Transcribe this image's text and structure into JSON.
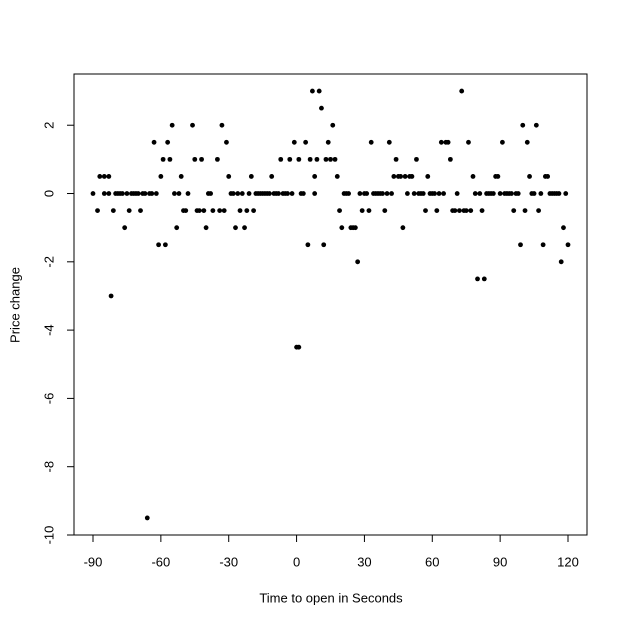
{
  "chart_data": {
    "type": "scatter",
    "x_label": "Time to open in Seconds",
    "y_label": "Price change",
    "color": "#000000",
    "xlim": [
      -98.4,
      128.4
    ],
    "ylim": [
      -10,
      3.5
    ],
    "xticks": [
      -90,
      -60,
      -30,
      0,
      30,
      60,
      90,
      120
    ],
    "yticks": [
      -10,
      -8,
      -6,
      -4,
      -2,
      0,
      2
    ],
    "x": [
      -90,
      -88,
      -87,
      -85,
      -85,
      -83,
      -83,
      -82,
      -81,
      -80,
      -79,
      -78,
      -77,
      -76,
      -75,
      -74,
      -73,
      -72,
      -71,
      -70,
      -69,
      -68,
      -67,
      -66,
      -65,
      -64,
      -63,
      -62,
      -61,
      -60,
      -59,
      -58,
      -57,
      -56,
      -55,
      -54,
      -53,
      -52,
      -51,
      -50,
      -49,
      -48,
      -46,
      -45,
      -44,
      -43,
      -42,
      -41,
      -40,
      -39,
      -38,
      -37,
      -35,
      -34,
      -33,
      -32,
      -31,
      -30,
      -29,
      -28,
      -27,
      -26,
      -25,
      -24,
      -23,
      -22,
      -21,
      -20,
      -19,
      -18,
      -17,
      -16,
      -15,
      -14,
      -13,
      -12,
      -11,
      -10,
      -9,
      -8,
      -7,
      -6,
      -5,
      -4,
      -3,
      -2,
      -1,
      0,
      1,
      1,
      2,
      3,
      4,
      5,
      6,
      7,
      8,
      8,
      9,
      10,
      11,
      12,
      13,
      14,
      15,
      16,
      17,
      18,
      19,
      20,
      21,
      22,
      23,
      24,
      25,
      26,
      27,
      28,
      29,
      30,
      31,
      32,
      33,
      34,
      35,
      36,
      37,
      38,
      39,
      40,
      41,
      42,
      43,
      44,
      45,
      46,
      47,
      48,
      49,
      50,
      51,
      52,
      53,
      54,
      55,
      56,
      57,
      58,
      59,
      60,
      61,
      62,
      63,
      64,
      65,
      66,
      67,
      68,
      69,
      70,
      71,
      72,
      73,
      74,
      75,
      76,
      77,
      78,
      79,
      80,
      81,
      82,
      83,
      84,
      85,
      86,
      87,
      88,
      89,
      90,
      91,
      92,
      93,
      94,
      95,
      96,
      97,
      98,
      99,
      100,
      101,
      102,
      103,
      104,
      105,
      106,
      107,
      108,
      109,
      110,
      111,
      112,
      113,
      114,
      115,
      116,
      117,
      118,
      119,
      120
    ],
    "values": [
      0,
      -0.5,
      0.5,
      0.5,
      0,
      0,
      0.5,
      -3,
      -0.5,
      0,
      0,
      0,
      0,
      -1,
      0,
      -0.5,
      0,
      0,
      0,
      0,
      -0.5,
      0,
      0,
      -9.5,
      0,
      0,
      1.5,
      0,
      -1.5,
      0.5,
      1,
      -1.5,
      1.5,
      1,
      2,
      0,
      -1,
      0,
      0.5,
      -0.5,
      -0.5,
      0,
      2,
      1,
      -0.5,
      -0.5,
      1,
      -0.5,
      -1,
      0,
      0,
      -0.5,
      1,
      -0.5,
      2,
      -0.5,
      1.5,
      0.5,
      0,
      0,
      -1,
      0,
      -0.5,
      0,
      -1,
      -0.5,
      0,
      0.5,
      -0.5,
      0,
      0,
      0,
      0,
      0,
      0,
      0,
      0.5,
      0,
      0,
      0,
      1,
      0,
      0,
      0,
      1,
      0,
      1.5,
      -4.5,
      -4.5,
      1,
      0,
      0,
      1.5,
      -1.5,
      1,
      3,
      0,
      0.5,
      1,
      3,
      2.5,
      -1.5,
      1,
      1.5,
      1,
      2,
      1,
      0.5,
      -0.5,
      -1,
      0,
      0,
      0,
      -1,
      -1,
      -1,
      -2,
      0,
      -0.5,
      0,
      0,
      -0.5,
      1.5,
      0,
      0,
      0,
      0,
      0,
      -0.5,
      0,
      1.5,
      0,
      0.5,
      1,
      0.5,
      0.5,
      -1,
      0.5,
      0,
      0.5,
      0.5,
      0,
      1,
      0,
      0,
      0,
      -0.5,
      0.5,
      0,
      0,
      0,
      -0.5,
      0,
      1.5,
      0,
      1.5,
      1.5,
      1,
      -0.5,
      -0.5,
      0,
      -0.5,
      3,
      -0.5,
      -0.5,
      1.5,
      -0.5,
      0.5,
      0,
      -2.5,
      0,
      -0.5,
      -2.5,
      0,
      0,
      0,
      0,
      0.5,
      0.5,
      0,
      1.5,
      0,
      0,
      0,
      0,
      -0.5,
      0,
      0,
      -1.5,
      2,
      -0.5,
      1.5,
      0.5,
      0,
      0,
      2,
      -0.5,
      0,
      -1.5,
      0.5,
      0.5,
      0,
      0,
      0,
      0,
      0,
      -2,
      -1,
      0,
      -1.5
    ]
  }
}
